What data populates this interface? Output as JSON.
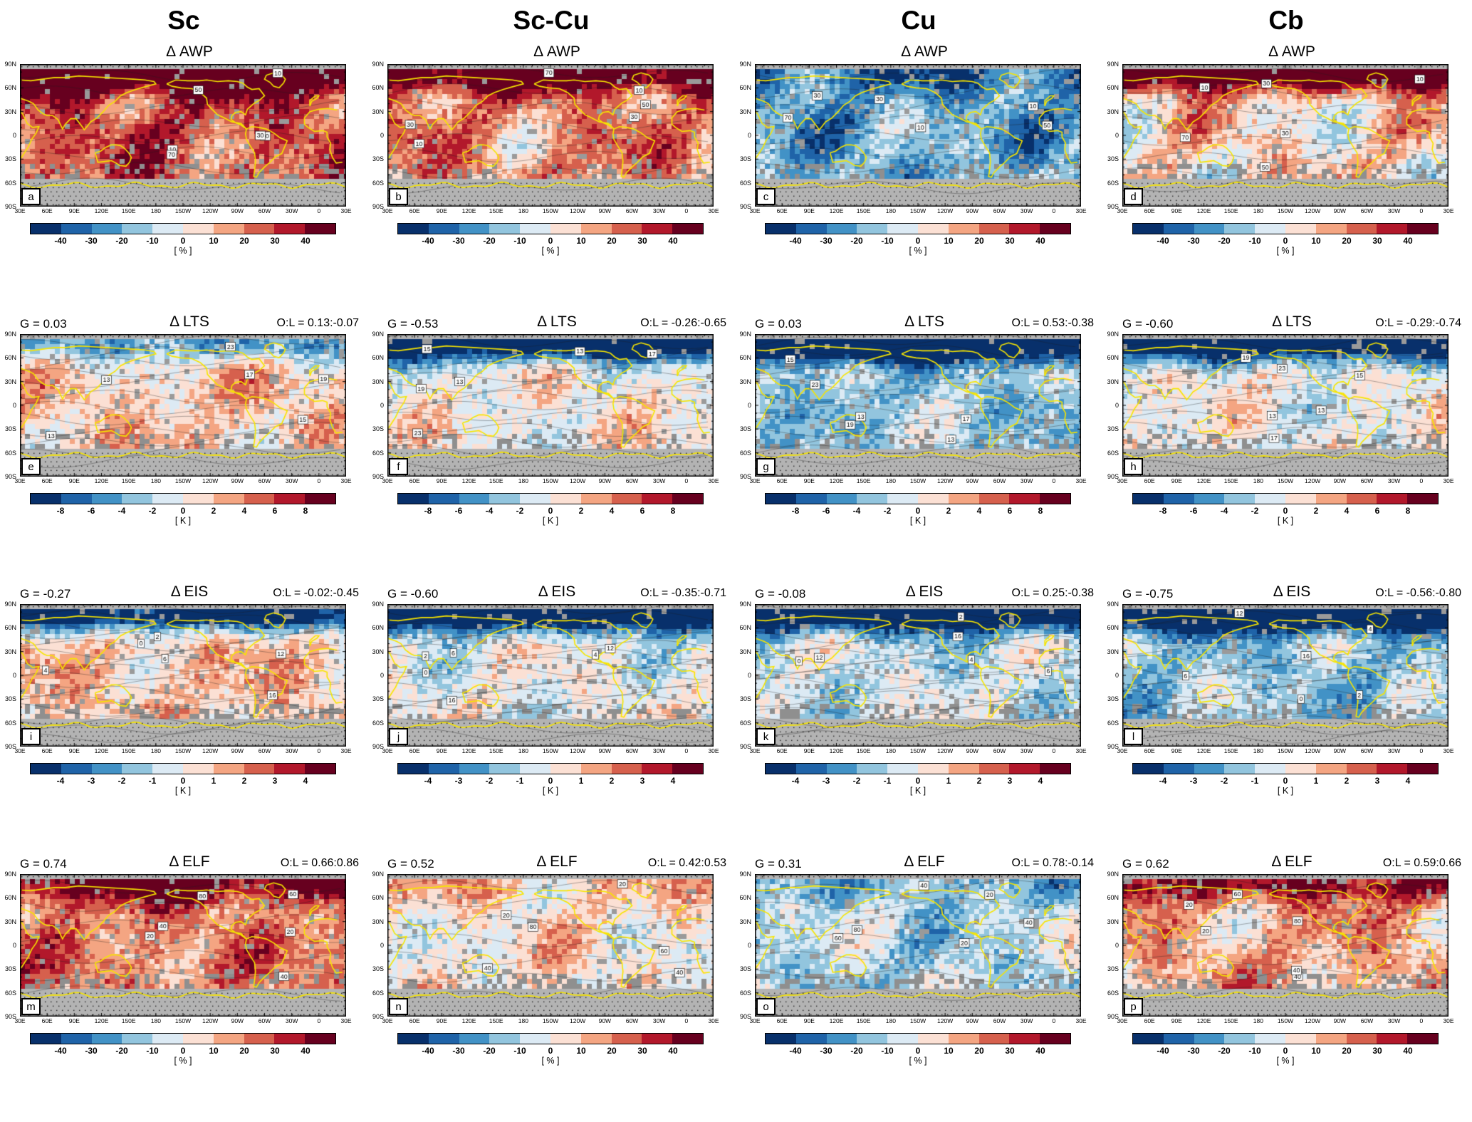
{
  "figure": {
    "columns": [
      "Sc",
      "Sc-Cu",
      "Cu",
      "Cb"
    ],
    "rows": [
      {
        "metric": "Δ AWP",
        "unit": "[ % ]",
        "ticks": [
          "-40",
          "-30",
          "-20",
          "-10",
          "0",
          "10",
          "20",
          "30",
          "40"
        ],
        "contour_labels": [
          "10",
          "30",
          "50",
          "70"
        ]
      },
      {
        "metric": "Δ LTS",
        "unit": "[ K ]",
        "ticks": [
          "-8",
          "-6",
          "-4",
          "-2",
          "0",
          "2",
          "4",
          "6",
          "8"
        ],
        "contour_labels": [
          "13",
          "15",
          "17",
          "19",
          "23"
        ]
      },
      {
        "metric": "Δ EIS",
        "unit": "[ K ]",
        "ticks": [
          "-4",
          "-3",
          "-2",
          "-1",
          "0",
          "1",
          "2",
          "3",
          "4"
        ],
        "contour_labels": [
          "0",
          "2",
          "4",
          "6",
          "12",
          "16"
        ]
      },
      {
        "metric": "Δ ELF",
        "unit": "[ % ]",
        "ticks": [
          "-40",
          "-30",
          "-20",
          "-10",
          "0",
          "10",
          "20",
          "30",
          "40"
        ],
        "contour_labels": [
          "20",
          "40",
          "60",
          "80"
        ]
      }
    ],
    "axes": {
      "lat": [
        "90N",
        "60N",
        "30N",
        "0",
        "30S",
        "60S",
        "90S"
      ],
      "lon": [
        "30E",
        "60E",
        "90E",
        "120E",
        "150E",
        "180",
        "150W",
        "120W",
        "90W",
        "60W",
        "30W",
        "0",
        "30E"
      ]
    }
  },
  "panels": [
    {
      "letter": "a",
      "col": "Sc",
      "metric": "Δ AWP",
      "g_label": "",
      "ol_label": "",
      "pattern": {
        "mid": 0.55,
        "north": 0.9,
        "noise": 0.5,
        "gray": 0.05
      }
    },
    {
      "letter": "b",
      "col": "Sc-Cu",
      "metric": "Δ AWP",
      "g_label": "",
      "ol_label": "",
      "pattern": {
        "mid": 0.38,
        "north": 0.75,
        "noise": 0.5,
        "gray": 0.06
      }
    },
    {
      "letter": "c",
      "col": "Cu",
      "metric": "Δ AWP",
      "g_label": "",
      "ol_label": "",
      "pattern": {
        "mid": -0.42,
        "north": -0.25,
        "noise": 0.5,
        "gray": 0.07
      }
    },
    {
      "letter": "d",
      "col": "Cb",
      "metric": "Δ AWP",
      "g_label": "",
      "ol_label": "",
      "pattern": {
        "mid": 0.12,
        "north": 0.95,
        "noise": 0.55,
        "gray": 0.06
      }
    },
    {
      "letter": "e",
      "col": "Sc",
      "metric": "Δ LTS",
      "g_label": "G = 0.03",
      "ol_label": "O:L = 0.13:-0.07",
      "pattern": {
        "mid": 0.18,
        "north": -0.55,
        "noise": 0.35,
        "gray": 0.07
      }
    },
    {
      "letter": "f",
      "col": "Sc-Cu",
      "metric": "Δ LTS",
      "g_label": "G = -0.53",
      "ol_label": "O:L = -0.26:-0.65",
      "pattern": {
        "mid": 0.03,
        "north": -1.05,
        "noise": 0.35,
        "gray": 0.07
      }
    },
    {
      "letter": "g",
      "col": "Cu",
      "metric": "Δ LTS",
      "g_label": "G = 0.03",
      "ol_label": "O:L = 0.53:-0.38",
      "pattern": {
        "mid": -0.28,
        "north": -1.1,
        "noise": 0.35,
        "gray": 0.07
      }
    },
    {
      "letter": "h",
      "col": "Cb",
      "metric": "Δ LTS",
      "g_label": "G = -0.60",
      "ol_label": "O:L = -0.29:-0.74",
      "pattern": {
        "mid": -0.02,
        "north": -1.05,
        "noise": 0.35,
        "gray": 0.07
      }
    },
    {
      "letter": "i",
      "col": "Sc",
      "metric": "Δ EIS",
      "g_label": "G = -0.27",
      "ol_label": "O:L = -0.02:-0.45",
      "pattern": {
        "mid": 0.2,
        "north": -1.1,
        "noise": 0.35,
        "gray": 0.07
      }
    },
    {
      "letter": "j",
      "col": "Sc-Cu",
      "metric": "Δ EIS",
      "g_label": "G = -0.60",
      "ol_label": "O:L = -0.35:-0.71",
      "pattern": {
        "mid": -0.05,
        "north": -1.1,
        "noise": 0.35,
        "gray": 0.07
      }
    },
    {
      "letter": "k",
      "col": "Cu",
      "metric": "Δ EIS",
      "g_label": "G = -0.08",
      "ol_label": "O:L = 0.25:-0.38",
      "pattern": {
        "mid": -0.15,
        "north": -1.05,
        "noise": 0.35,
        "gray": 0.07
      }
    },
    {
      "letter": "l",
      "col": "Cb",
      "metric": "Δ EIS",
      "g_label": "G = -0.75",
      "ol_label": "O:L = -0.56:-0.80",
      "pattern": {
        "mid": -0.28,
        "north": -1.1,
        "noise": 0.35,
        "gray": 0.07
      }
    },
    {
      "letter": "m",
      "col": "Sc",
      "metric": "Δ ELF",
      "g_label": "G = 0.74",
      "ol_label": "O:L = 0.66:0.86",
      "pattern": {
        "mid": 0.42,
        "north": 0.5,
        "noise": 0.4,
        "gray": 0.07
      }
    },
    {
      "letter": "n",
      "col": "Sc-Cu",
      "metric": "Δ ELF",
      "g_label": "G = 0.52",
      "ol_label": "O:L = 0.42:0.53",
      "pattern": {
        "mid": 0.08,
        "north": 0.1,
        "noise": 0.4,
        "gray": 0.07
      }
    },
    {
      "letter": "o",
      "col": "Cu",
      "metric": "Δ ELF",
      "g_label": "G = 0.31",
      "ol_label": "O:L = 0.78:-0.14",
      "pattern": {
        "mid": -0.22,
        "north": -0.15,
        "noise": 0.4,
        "gray": 0.08
      }
    },
    {
      "letter": "p",
      "col": "Cb",
      "metric": "Δ ELF",
      "g_label": "G = 0.62",
      "ol_label": "O:L = 0.59:0.66",
      "pattern": {
        "mid": 0.28,
        "north": 0.5,
        "noise": 0.4,
        "gray": 0.07
      }
    }
  ],
  "chart_data": {
    "type": "heatmap",
    "subtype": "global map grid: 4 cloud types (columns) × 4 metrics (rows), filled anomaly maps with contours, yellow coastlines, gray stippled masked regions",
    "columns": [
      "Sc",
      "Sc-Cu",
      "Cu",
      "Cb"
    ],
    "metrics": [
      "Δ AWP",
      "Δ LTS",
      "Δ EIS",
      "Δ ELF"
    ],
    "colorbar_ranges": {
      "Δ AWP": {
        "ticks": [
          -40,
          -30,
          -20,
          -10,
          0,
          10,
          20,
          30,
          40
        ],
        "unit": "%"
      },
      "Δ LTS": {
        "ticks": [
          -8,
          -6,
          -4,
          -2,
          0,
          2,
          4,
          6,
          8
        ],
        "unit": "K"
      },
      "Δ EIS": {
        "ticks": [
          -4,
          -3,
          -2,
          -1,
          0,
          1,
          2,
          3,
          4
        ],
        "unit": "K"
      },
      "Δ ELF": {
        "ticks": [
          -40,
          -30,
          -20,
          -10,
          0,
          10,
          20,
          30,
          40
        ],
        "unit": "%"
      }
    },
    "lat_ticks": [
      "90N",
      "60N",
      "30N",
      "0",
      "30S",
      "60S",
      "90S"
    ],
    "lon_ticks": [
      "30E",
      "60E",
      "90E",
      "120E",
      "150E",
      "180",
      "150W",
      "120W",
      "90W",
      "60W",
      "30W",
      "0",
      "30E"
    ],
    "panel_stats": [
      {
        "panel": "a",
        "cloud": "Sc",
        "metric": "Δ AWP"
      },
      {
        "panel": "b",
        "cloud": "Sc-Cu",
        "metric": "Δ AWP"
      },
      {
        "panel": "c",
        "cloud": "Cu",
        "metric": "Δ AWP"
      },
      {
        "panel": "d",
        "cloud": "Cb",
        "metric": "Δ AWP"
      },
      {
        "panel": "e",
        "cloud": "Sc",
        "metric": "Δ LTS",
        "G": 0.03,
        "O": 0.13,
        "L": -0.07
      },
      {
        "panel": "f",
        "cloud": "Sc-Cu",
        "metric": "Δ LTS",
        "G": -0.53,
        "O": -0.26,
        "L": -0.65
      },
      {
        "panel": "g",
        "cloud": "Cu",
        "metric": "Δ LTS",
        "G": 0.03,
        "O": 0.53,
        "L": -0.38
      },
      {
        "panel": "h",
        "cloud": "Cb",
        "metric": "Δ LTS",
        "G": -0.6,
        "O": -0.29,
        "L": -0.74
      },
      {
        "panel": "i",
        "cloud": "Sc",
        "metric": "Δ EIS",
        "G": -0.27,
        "O": -0.02,
        "L": -0.45
      },
      {
        "panel": "j",
        "cloud": "Sc-Cu",
        "metric": "Δ EIS",
        "G": -0.6,
        "O": -0.35,
        "L": -0.71
      },
      {
        "panel": "k",
        "cloud": "Cu",
        "metric": "Δ EIS",
        "G": -0.08,
        "O": 0.25,
        "L": -0.38
      },
      {
        "panel": "l",
        "cloud": "Cb",
        "metric": "Δ EIS",
        "G": -0.75,
        "O": -0.56,
        "L": -0.8
      },
      {
        "panel": "m",
        "cloud": "Sc",
        "metric": "Δ ELF",
        "G": 0.74,
        "O": 0.66,
        "L": 0.86
      },
      {
        "panel": "n",
        "cloud": "Sc-Cu",
        "metric": "Δ ELF",
        "G": 0.52,
        "O": 0.42,
        "L": 0.53
      },
      {
        "panel": "o",
        "cloud": "Cu",
        "metric": "Δ ELF",
        "G": 0.31,
        "O": 0.78,
        "L": -0.14
      },
      {
        "panel": "p",
        "cloud": "Cb",
        "metric": "Δ ELF",
        "G": 0.62,
        "O": 0.59,
        "L": 0.66
      }
    ],
    "palette": [
      "#08306b",
      "#1f63a8",
      "#4292c6",
      "#92c5de",
      "#dceaf4",
      "#fbe0d4",
      "#f4a582",
      "#d6604d",
      "#b2182b",
      "#67001f"
    ]
  }
}
